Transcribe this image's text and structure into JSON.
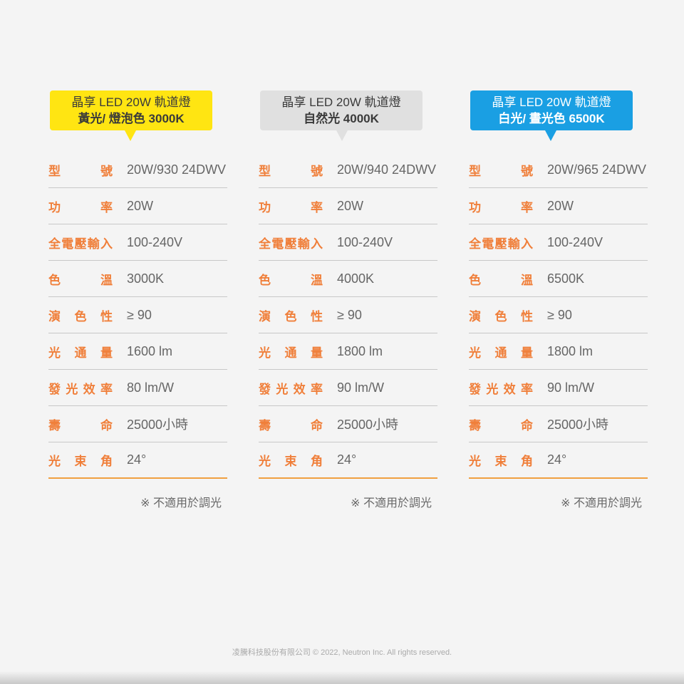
{
  "products": [
    {
      "title_line1": "晶享 LED 20W 軌道燈",
      "title_line2": "黃光/ 燈泡色 3000K",
      "bubble_color": "#ffe512",
      "text_color": "#3a3a3a",
      "specs": [
        "20W/930 24DWV",
        "20W",
        "100-240V",
        "3000K",
        "≥ 90",
        "1600 lm",
        "80 lm/W",
        "25000小時",
        "24°"
      ],
      "note": "※ 不適用於調光"
    },
    {
      "title_line1": "晶享 LED 20W 軌道燈",
      "title_line2": "自然光 4000K",
      "bubble_color": "#e0e0e0",
      "text_color": "#3a3a3a",
      "specs": [
        "20W/940 24DWV",
        "20W",
        "100-240V",
        "4000K",
        "≥ 90",
        "1800 lm",
        "90 lm/W",
        "25000小時",
        "24°"
      ],
      "note": "※ 不適用於調光"
    },
    {
      "title_line1": "晶享 LED 20W 軌道燈",
      "title_line2": "白光/ 晝光色 6500K",
      "bubble_color": "#1a9fe3",
      "text_color": "#ffffff",
      "specs": [
        "20W/965 24DWV",
        "20W",
        "100-240V",
        "6500K",
        "≥ 90",
        "1800 lm",
        "90 lm/W",
        "25000小時",
        "24°"
      ],
      "note": "※ 不適用於調光"
    }
  ],
  "labels": [
    "型號",
    "功率",
    "全電壓輸入",
    "色溫",
    "演色性",
    "光通量",
    "發光效率",
    "壽命",
    "光束角"
  ],
  "footer": "凌騰科技股份有限公司 © 2022, Neutron Inc. All rights reserved."
}
